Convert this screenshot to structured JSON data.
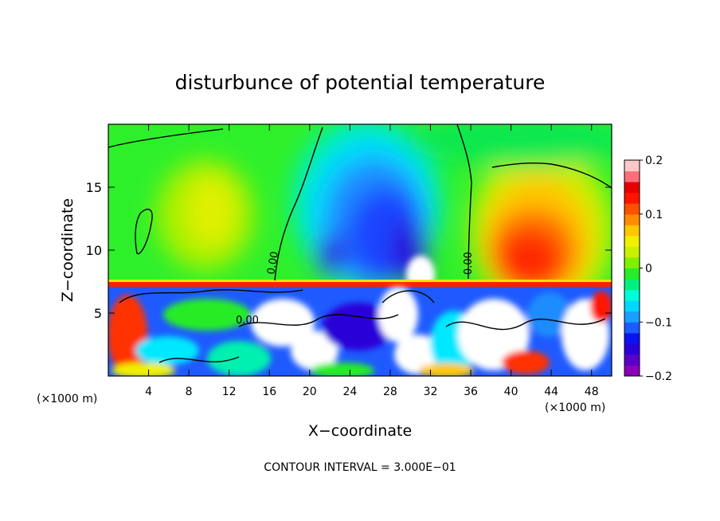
{
  "chart_data": {
    "type": "heatmap",
    "title": "disturbunce of potential temperature",
    "xlabel": "X−coordinate",
    "ylabel": "Z−coordinate",
    "x_unit_left": "(×1000 m)",
    "x_unit_right": "(×1000 m)",
    "footer": "CONTOUR INTERVAL = 3.000E−01",
    "xlim": [
      0,
      50
    ],
    "ylim": [
      0,
      20
    ],
    "x_ticks": [
      4,
      8,
      12,
      16,
      20,
      24,
      28,
      32,
      36,
      40,
      44,
      48
    ],
    "x_tick_labels": [
      "4",
      "8",
      "12",
      "16",
      "20",
      "24",
      "28",
      "32",
      "36",
      "40",
      "44",
      "48"
    ],
    "y_ticks": [
      5,
      10,
      15
    ],
    "y_tick_labels": [
      "5",
      "10",
      "15"
    ],
    "colorbar": {
      "range": [
        -0.2,
        0.2
      ],
      "ticks": [
        0.2,
        0.1,
        0,
        -0.1,
        -0.2
      ],
      "tick_labels": [
        "0.2",
        "0.1",
        "0",
        "−0.1",
        "−0.2"
      ],
      "colors": [
        "#8b00b8",
        "#5a00c8",
        "#2a00d8",
        "#0a14f0",
        "#1a5cff",
        "#1aa0ff",
        "#00d8ff",
        "#00fcd8",
        "#00f080",
        "#28ec28",
        "#80f000",
        "#c8f000",
        "#f0f000",
        "#ffc800",
        "#ff8c00",
        "#ff5000",
        "#ff1400",
        "#e60000",
        "#ff6e78",
        "#ffc8c8"
      ]
    },
    "contour_labels": [
      "0.00",
      "0.00",
      "0.00"
    ],
    "stable_layer_z": 7.2
  }
}
